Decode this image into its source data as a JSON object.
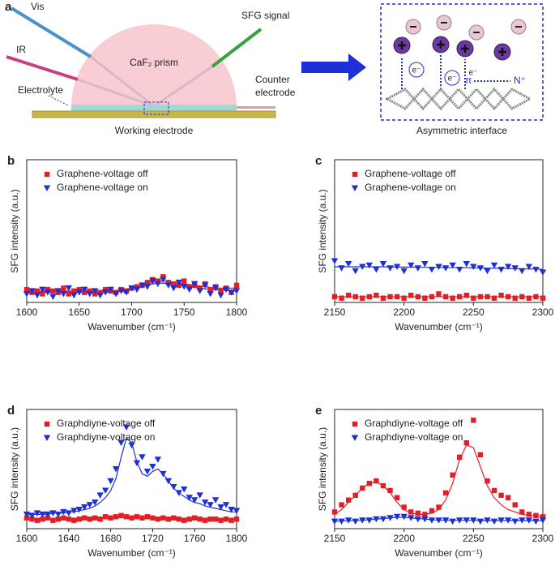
{
  "diagram": {
    "label": "a",
    "vis": "Vis",
    "ir": "IR",
    "sfg": "SFG signal",
    "prism": "CaF₂ prism",
    "counter": [
      "Counter",
      "electrode"
    ],
    "electrolyte": "Electrolyte",
    "working": "Working electrode",
    "interface": "Asymmetric interface",
    "electron": "e⁻",
    "pi": "π",
    "n_plus": "N⁺"
  },
  "chart_data": [
    {
      "type": "scatter",
      "label": "b",
      "x_label": "Wavenumber (cm⁻¹)",
      "y_label": "SFG intensity (a.u.)",
      "x": [
        1600,
        1605,
        1610,
        1615,
        1620,
        1625,
        1630,
        1635,
        1640,
        1645,
        1650,
        1655,
        1660,
        1665,
        1670,
        1675,
        1680,
        1685,
        1690,
        1695,
        1700,
        1705,
        1710,
        1715,
        1720,
        1725,
        1730,
        1735,
        1740,
        1745,
        1750,
        1755,
        1760,
        1765,
        1770,
        1775,
        1780,
        1785,
        1790,
        1795,
        1800
      ],
      "xlim": [
        1600,
        1800
      ],
      "xticks": [
        1600,
        1650,
        1700,
        1750,
        1800
      ],
      "ylim": [
        0,
        100
      ],
      "legend": "upper left",
      "series": [
        {
          "name": "Graphene-voltage off",
          "color": "#e41e26",
          "marker": "square",
          "values": [
            9,
            7,
            8,
            6,
            9,
            8,
            7,
            10,
            6,
            8,
            9,
            7,
            8,
            6,
            7,
            9,
            8,
            7,
            9,
            8,
            10,
            11,
            12,
            14,
            16,
            15,
            18,
            14,
            13,
            12,
            15,
            11,
            12,
            10,
            13,
            9,
            11,
            8,
            10,
            7,
            12
          ],
          "fit": [
            8,
            8,
            8,
            8,
            8,
            8,
            8,
            8,
            8,
            8,
            8,
            8,
            8,
            8,
            8,
            8,
            8,
            8.5,
            9,
            9.5,
            10,
            11,
            12,
            13,
            14,
            15,
            15,
            14.5,
            14,
            13.5,
            13,
            12.5,
            12,
            11.5,
            11,
            10.5,
            10,
            10,
            10,
            10,
            10
          ]
        },
        {
          "name": "Graphene-voltage on",
          "color": "#1f2fd6",
          "marker": "triangle-down",
          "values": [
            6,
            8,
            5,
            9,
            7,
            4,
            8,
            6,
            10,
            5,
            7,
            9,
            6,
            8,
            5,
            7,
            9,
            6,
            8,
            7,
            10,
            9,
            12,
            11,
            15,
            13,
            16,
            12,
            10,
            14,
            11,
            9,
            13,
            8,
            12,
            6,
            10,
            5,
            9,
            7,
            8
          ],
          "fit": [
            7,
            7,
            7,
            7,
            7,
            7,
            7,
            7,
            7,
            7,
            7,
            7,
            7,
            7,
            7,
            7,
            7,
            7.5,
            8,
            8.5,
            9,
            10,
            11,
            12,
            13,
            13.5,
            13.5,
            13,
            12.5,
            12,
            11.5,
            11,
            10.5,
            10,
            9.5,
            9,
            9,
            8.5,
            8.5,
            8,
            8
          ]
        }
      ]
    },
    {
      "type": "scatter",
      "label": "c",
      "x_label": "Wavenumber (cm⁻¹)",
      "y_label": "SFG intensity (a.u.)",
      "x": [
        2150,
        2155,
        2160,
        2165,
        2170,
        2175,
        2180,
        2185,
        2190,
        2195,
        2200,
        2205,
        2210,
        2215,
        2220,
        2225,
        2230,
        2235,
        2240,
        2245,
        2250,
        2255,
        2260,
        2265,
        2270,
        2275,
        2280,
        2285,
        2290,
        2295,
        2300
      ],
      "xlim": [
        2150,
        2300
      ],
      "xticks": [
        2150,
        2200,
        2250,
        2300
      ],
      "ylim": [
        0,
        100
      ],
      "legend": "upper left",
      "series": [
        {
          "name": "Graphene-voltage off",
          "color": "#e41e26",
          "marker": "square",
          "values": [
            4,
            3,
            5,
            4,
            3,
            4,
            5,
            3,
            4,
            4,
            3,
            5,
            4,
            3,
            4,
            6,
            4,
            3,
            4,
            5,
            3,
            4,
            4,
            3,
            5,
            4,
            3,
            4,
            3,
            4,
            3
          ],
          "fit": [
            4,
            4,
            4,
            4,
            4,
            4,
            4,
            4,
            4,
            4,
            4,
            4,
            4,
            4,
            4,
            4,
            4,
            4,
            4,
            4,
            4,
            4,
            4,
            4,
            4,
            4,
            4,
            4,
            4,
            4,
            4
          ]
        },
        {
          "name": "Graphene-voltage on",
          "color": "#1f2fd6",
          "marker": "triangle-down",
          "values": [
            29,
            24,
            27,
            22,
            25,
            26,
            23,
            27,
            24,
            25,
            22,
            26,
            24,
            27,
            23,
            25,
            24,
            26,
            23,
            27,
            25,
            24,
            22,
            26,
            23,
            25,
            24,
            22,
            25,
            23,
            21
          ],
          "fit": [
            25,
            25,
            25,
            25,
            25,
            25,
            25,
            25,
            24.8,
            24.8,
            24.8,
            24.8,
            24.6,
            24.6,
            24.6,
            24.6,
            24.4,
            24.4,
            24.4,
            24.4,
            24.2,
            24.2,
            24,
            24,
            23.8,
            23.8,
            23.6,
            23.6,
            23.4,
            23.4,
            23.2
          ]
        }
      ]
    },
    {
      "type": "scatter",
      "label": "d",
      "x_label": "Wavenumber (cm⁻¹)",
      "y_label": "SFG intensity (a.u.)",
      "x": [
        1600,
        1605,
        1610,
        1615,
        1620,
        1625,
        1630,
        1635,
        1640,
        1645,
        1650,
        1655,
        1660,
        1665,
        1670,
        1675,
        1680,
        1685,
        1690,
        1695,
        1700,
        1705,
        1710,
        1715,
        1720,
        1725,
        1730,
        1735,
        1740,
        1745,
        1750,
        1755,
        1760,
        1765,
        1770,
        1775,
        1780,
        1785,
        1790,
        1795,
        1800
      ],
      "xlim": [
        1600,
        1800
      ],
      "xticks": [
        1600,
        1640,
        1680,
        1720,
        1760,
        1800
      ],
      "ylim": [
        0,
        100
      ],
      "legend": "upper left",
      "series": [
        {
          "name": "Graphdiyne-voltage off",
          "color": "#e41e26",
          "marker": "square",
          "values": [
            9,
            8,
            7,
            8,
            9,
            7,
            8,
            9,
            8,
            7,
            8,
            9,
            8,
            9,
            8,
            10,
            9,
            10,
            11,
            10,
            9,
            10,
            9,
            10,
            9,
            8,
            9,
            8,
            9,
            8,
            7,
            8,
            9,
            8,
            7,
            8,
            8,
            7,
            8,
            7,
            8
          ],
          "fit": [
            8,
            8,
            8,
            8,
            8,
            8,
            8,
            8,
            8,
            8,
            8,
            8.5,
            8.5,
            9,
            9,
            9,
            9.5,
            9.5,
            9.5,
            9.5,
            9.5,
            9.5,
            9.5,
            9.5,
            9,
            9,
            9,
            8.5,
            8.5,
            8.5,
            8,
            8,
            8,
            8,
            8,
            8,
            8,
            8,
            8,
            8,
            8
          ]
        },
        {
          "name": "Graphdiyne-voltage on",
          "color": "#1f2fd6",
          "marker": "triangle-down",
          "values": [
            12,
            11,
            13,
            12,
            12,
            13,
            12,
            14,
            13,
            15,
            16,
            18,
            20,
            22,
            28,
            32,
            40,
            50,
            72,
            85,
            70,
            55,
            60,
            48,
            52,
            58,
            46,
            40,
            35,
            30,
            33,
            26,
            24,
            28,
            22,
            20,
            24,
            18,
            20,
            16,
            15
          ],
          "fit": [
            12,
            12,
            12,
            12,
            12,
            13,
            13,
            13,
            14,
            14,
            15,
            16,
            17,
            19,
            22,
            26,
            32,
            42,
            60,
            76,
            72,
            56,
            46,
            44,
            48,
            50,
            46,
            40,
            34,
            30,
            27,
            24,
            22,
            21,
            19,
            18,
            17,
            16,
            15,
            14,
            14
          ]
        }
      ]
    },
    {
      "type": "scatter",
      "label": "e",
      "x_label": "Wavenumber (cm⁻¹)",
      "y_label": "SFG intensity (a.u.)",
      "x": [
        2150,
        2155,
        2160,
        2165,
        2170,
        2175,
        2180,
        2185,
        2190,
        2195,
        2200,
        2205,
        2210,
        2215,
        2220,
        2225,
        2230,
        2235,
        2240,
        2245,
        2250,
        2255,
        2260,
        2265,
        2270,
        2275,
        2280,
        2285,
        2290,
        2295,
        2300
      ],
      "xlim": [
        2150,
        2300
      ],
      "xticks": [
        2150,
        2200,
        2250,
        2300
      ],
      "ylim": [
        0,
        100
      ],
      "legend": "upper left",
      "series": [
        {
          "name": "Graphdiyne-voltage off",
          "color": "#e41e26",
          "marker": "square",
          "values": [
            14,
            20,
            24,
            28,
            34,
            38,
            40,
            36,
            32,
            26,
            18,
            14,
            13,
            12,
            15,
            18,
            30,
            45,
            60,
            72,
            91,
            62,
            40,
            32,
            28,
            26,
            20,
            14,
            12,
            11,
            10
          ],
          "fit": [
            12,
            16,
            22,
            28,
            34,
            38,
            39,
            36,
            30,
            22,
            16,
            13,
            12,
            12,
            13,
            16,
            24,
            38,
            58,
            70,
            68,
            52,
            36,
            26,
            20,
            16,
            14,
            12,
            11,
            11,
            10
          ]
        },
        {
          "name": "Graphdiyne-voltage on",
          "color": "#1f2fd6",
          "marker": "triangle-down",
          "values": [
            6,
            6,
            7,
            6,
            7,
            7,
            8,
            8,
            9,
            10,
            10,
            9,
            8,
            8,
            7,
            7,
            7,
            6,
            7,
            7,
            7,
            6,
            7,
            6,
            7,
            7,
            6,
            7,
            7,
            6,
            7
          ],
          "fit": [
            6,
            6.5,
            6.5,
            7,
            7,
            7.5,
            8,
            8.5,
            9,
            9.5,
            9.5,
            9,
            8.5,
            8,
            7.5,
            7,
            7,
            7,
            7,
            7,
            7,
            6.8,
            6.8,
            6.8,
            6.8,
            6.8,
            6.8,
            6.8,
            6.8,
            6.8,
            6.8
          ]
        }
      ]
    }
  ]
}
